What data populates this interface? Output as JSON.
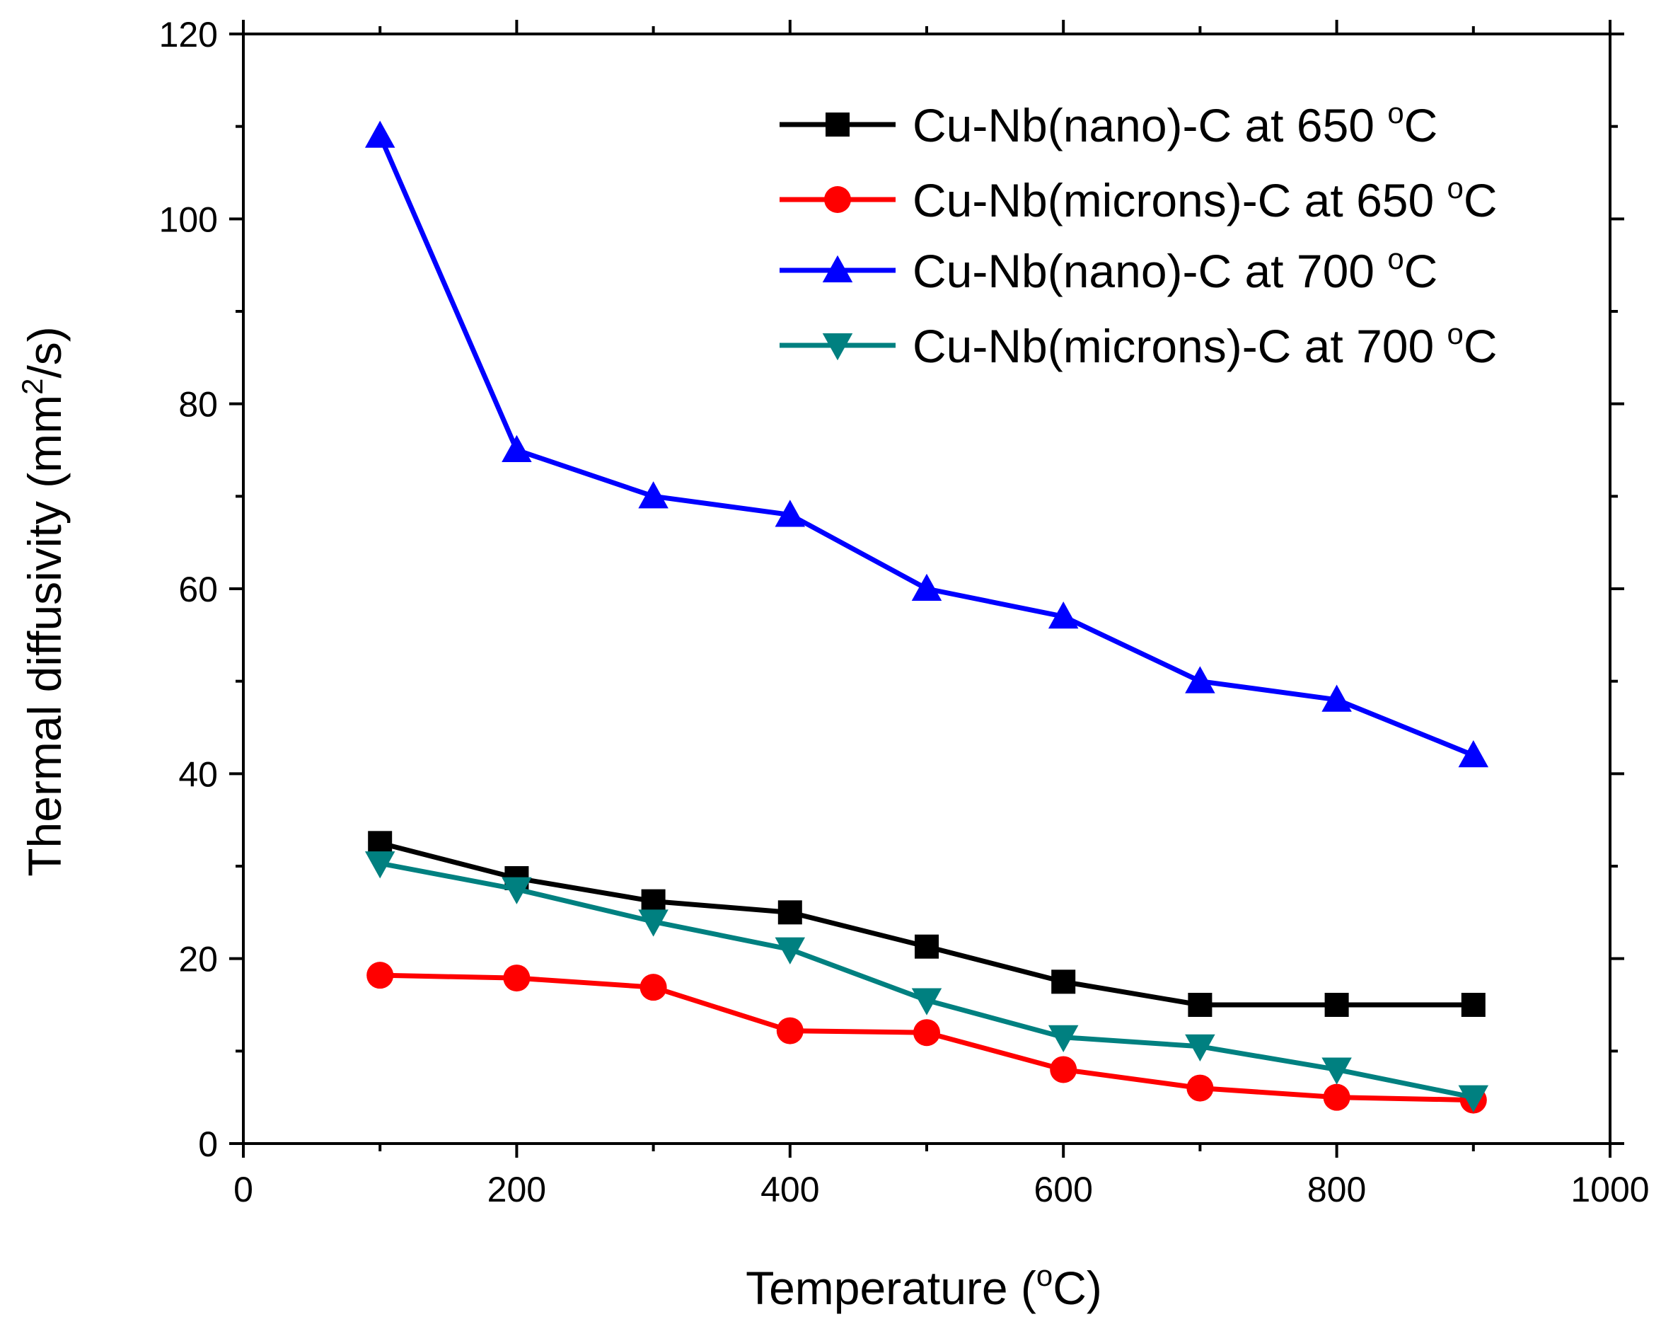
{
  "chart_data": {
    "type": "line",
    "title": "",
    "x_label_prefix": "Temperature (",
    "x_label_sup": "o",
    "x_label_suffix": "C)",
    "y_label_prefix": "Thermal diffusivity (mm",
    "y_label_sup": "2",
    "y_label_suffix": "/s)",
    "xlim": [
      0,
      1000
    ],
    "ylim": [
      0,
      120
    ],
    "x_ticks": [
      0,
      200,
      400,
      600,
      800,
      1000
    ],
    "y_ticks": [
      0,
      20,
      40,
      60,
      80,
      100,
      120
    ],
    "x_tick_labels": [
      "0",
      "200",
      "400",
      "600",
      "800",
      "1000"
    ],
    "y_tick_labels": [
      "0",
      "20",
      "40",
      "60",
      "80",
      "100",
      "120"
    ],
    "grid": false,
    "legend_position": "top-right",
    "x": [
      100,
      200,
      300,
      400,
      500,
      600,
      700,
      800,
      900
    ],
    "series": [
      {
        "name": "Cu-Nb(nano)-C at 650",
        "name_sup": "o",
        "name_suffix": "C",
        "color": "#000000",
        "marker": "square",
        "values": [
          32.5,
          28.7,
          26.2,
          25.0,
          21.3,
          17.5,
          15.0,
          15.0,
          15.0
        ]
      },
      {
        "name": "Cu-Nb(microns)-C at 650",
        "name_sup": "o",
        "name_suffix": "C",
        "color": "#ff0000",
        "marker": "circle",
        "values": [
          18.2,
          17.9,
          16.9,
          12.2,
          12.0,
          8.0,
          6.0,
          5.0,
          4.7
        ]
      },
      {
        "name": "Cu-Nb(nano)-C at 700",
        "name_sup": "o",
        "name_suffix": "C",
        "color": "#0000ff",
        "marker": "triangle-up",
        "values": [
          109.0,
          75.0,
          70.0,
          68.0,
          60.0,
          57.0,
          50.0,
          48.0,
          42.0
        ]
      },
      {
        "name": "Cu-Nb(microns)-C at 700",
        "name_sup": "o",
        "name_suffix": "C",
        "color": "#008080",
        "marker": "triangle-down",
        "values": [
          30.3,
          27.5,
          24.0,
          21.0,
          15.5,
          11.5,
          10.5,
          8.0,
          5.0
        ]
      }
    ]
  }
}
